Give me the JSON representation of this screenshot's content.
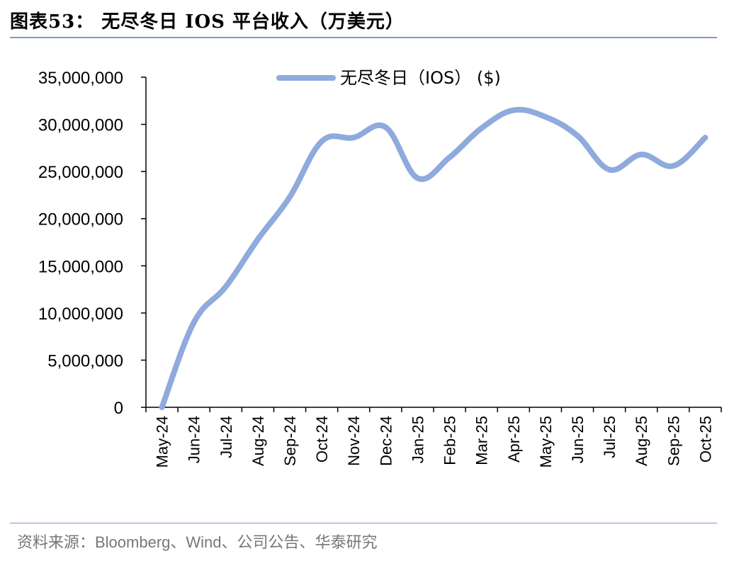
{
  "header": {
    "title": "图表53： 无尽冬日 IOS 平台收入（万美元）"
  },
  "footer": {
    "source": "资料来源：Bloomberg、Wind、公司公告、华泰研究"
  },
  "chart_data": {
    "type": "line",
    "x": [
      "May-24",
      "Jun-24",
      "Jul-24",
      "Aug-24",
      "Sep-24",
      "Oct-24",
      "Nov-24",
      "Dec-24",
      "Jan-25",
      "Feb-25",
      "Mar-25",
      "Apr-25",
      "May-25",
      "Jun-25",
      "Jul-25",
      "Aug-25",
      "Sep-25",
      "Oct-25"
    ],
    "series": [
      {
        "name": "无尽冬日（IOS） ($)",
        "values": [
          0,
          9000000,
          12800000,
          17800000,
          22300000,
          28200000,
          28600000,
          29700000,
          24300000,
          26500000,
          29600000,
          31500000,
          30800000,
          28800000,
          25200000,
          26800000,
          25600000,
          28600000
        ]
      }
    ],
    "y_ticks": [
      "0",
      "5,000,000",
      "10,000,000",
      "15,000,000",
      "20,000,000",
      "25,000,000",
      "30,000,000",
      "35,000,000"
    ],
    "ylim": [
      0,
      35000000
    ],
    "grid": false,
    "legend_position": "top",
    "line_color": "#8faadc"
  }
}
